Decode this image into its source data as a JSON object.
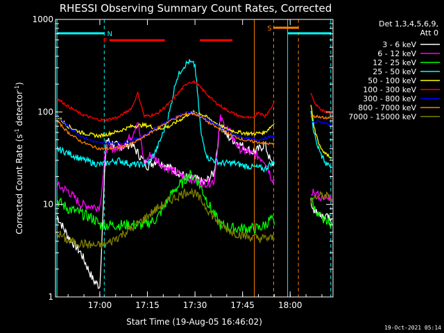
{
  "chart_data": {
    "type": "line",
    "title": "RHESSI Observing Summary Count Rates, Corrected",
    "xlabel": "Start Time (19-Aug-05 16:46:02)",
    "ylabel": "Corrected Count Rate (s⁻¹ detector⁻¹)",
    "ylabel_parts": {
      "main": "Corrected Count Rate (s",
      "sup1": "-1",
      "mid": " detector",
      "sup2": "-1",
      "end": ")"
    },
    "xlim": [
      46.03,
      133.5
    ],
    "ylim": [
      1,
      1000
    ],
    "yscale": "log",
    "x_tick_values": [
      60,
      75,
      90,
      105,
      120,
      135
    ],
    "x_tick_labels": [
      "17:00",
      "17:15",
      "17:30",
      "17:45",
      "18:00",
      "18:15"
    ],
    "y_tick_values": [
      1,
      10,
      100,
      1000
    ],
    "y_tick_labels": [
      "1",
      "10",
      "100",
      "1000"
    ],
    "legend_header": [
      "Det 1,3,4,5,6,9,",
      "Att 0"
    ],
    "legend_position": "right",
    "series": [
      {
        "name": "3 - 6 keV",
        "color": "#ffffff",
        "x": [
          46.5,
          50,
          54,
          58,
          60,
          62,
          66,
          70,
          73,
          75,
          78,
          82,
          86,
          88,
          90,
          93,
          96,
          98,
          100,
          104,
          108,
          110,
          112,
          114,
          115
        ],
        "y": [
          7.5,
          4.5,
          3.0,
          1.5,
          1.3,
          50,
          42,
          45,
          32,
          26,
          30,
          25,
          21,
          19,
          19,
          17,
          22,
          75,
          55,
          45,
          37,
          39,
          45,
          28,
          27
        ]
      },
      {
        "name": "6 - 12 keV",
        "color": "#ff00ff",
        "x": [
          46.5,
          50,
          54,
          58,
          60,
          62,
          66,
          70,
          72,
          74,
          76,
          80,
          84,
          88,
          91,
          94,
          96,
          98,
          101,
          104,
          108,
          110,
          112,
          113,
          114,
          115
        ],
        "y": [
          16,
          14,
          10,
          9.5,
          9.5,
          41,
          40,
          55,
          80,
          27,
          35,
          26,
          22,
          19,
          18,
          17,
          18,
          85,
          60,
          40,
          35,
          33,
          30,
          25,
          20,
          18
        ]
      },
      {
        "name": "12 - 25 keV",
        "color": "#00ff00",
        "x": [
          46.5,
          50,
          54,
          58,
          60,
          62,
          66,
          70,
          74,
          78,
          82,
          84,
          86,
          88,
          90,
          92,
          95,
          98,
          102,
          106,
          110,
          112,
          114,
          115
        ],
        "y": [
          11,
          9,
          8,
          7,
          6,
          6,
          6,
          6,
          6,
          7,
          12,
          15,
          17,
          21,
          20,
          15,
          9,
          6,
          5.5,
          5.5,
          5.5,
          6,
          7,
          6
        ]
      },
      {
        "name": "25 - 50 keV",
        "color": "#00ffff",
        "x": [
          46.5,
          50,
          54,
          58,
          60,
          62,
          66,
          70,
          74,
          76,
          78,
          80,
          82,
          84,
          86,
          88,
          90,
          92,
          94,
          96,
          98,
          102,
          106,
          110,
          112,
          114,
          115
        ],
        "y": [
          40,
          36,
          31,
          28,
          27,
          28,
          30,
          27,
          27,
          30,
          40,
          60,
          100,
          220,
          300,
          350,
          320,
          55,
          32,
          30,
          28,
          28,
          26,
          25,
          24,
          28,
          28
        ]
      },
      {
        "name": "50 - 100 keV",
        "color": "#ffff00",
        "x": [
          46.5,
          50,
          54,
          58,
          60,
          62,
          66,
          70,
          74,
          76,
          78,
          82,
          86,
          88,
          90,
          92,
          96,
          100,
          104,
          108,
          112,
          114,
          115
        ],
        "y": [
          90,
          70,
          60,
          56,
          55,
          57,
          62,
          70,
          72,
          70,
          65,
          70,
          85,
          95,
          100,
          95,
          78,
          65,
          60,
          58,
          60,
          70,
          75
        ]
      },
      {
        "name": "100 - 300 keV",
        "color": "#ff0000",
        "x": [
          46.5,
          50,
          54,
          58,
          60,
          62,
          66,
          70,
          72,
          74,
          76,
          78,
          82,
          86,
          88,
          90,
          92,
          96,
          100,
          104,
          108,
          110,
          112,
          114,
          115
        ],
        "y": [
          140,
          115,
          95,
          85,
          82,
          82,
          88,
          110,
          160,
          90,
          92,
          95,
          125,
          180,
          210,
          210,
          180,
          130,
          105,
          90,
          85,
          100,
          90,
          110,
          130
        ]
      },
      {
        "name": "300 - 800 keV",
        "color": "#0000ff",
        "x": [
          46.5,
          50,
          54,
          58,
          60,
          62,
          66,
          70,
          74,
          78,
          82,
          86,
          88,
          90,
          92,
          94,
          98,
          102,
          106,
          110,
          112,
          114,
          115
        ],
        "y": [
          90,
          70,
          55,
          48,
          46,
          46,
          46,
          48,
          56,
          68,
          82,
          95,
          100,
          98,
          90,
          82,
          68,
          58,
          52,
          50,
          52,
          54,
          55
        ]
      },
      {
        "name": "800 - 7000 keV",
        "color": "#ff8000",
        "x": [
          46.5,
          50,
          54,
          58,
          60,
          62,
          66,
          70,
          74,
          78,
          82,
          86,
          88,
          90,
          92,
          94,
          98,
          102,
          106,
          110,
          112,
          114,
          115
        ],
        "y": [
          80,
          60,
          48,
          42,
          40,
          40,
          41,
          45,
          54,
          66,
          80,
          92,
          96,
          95,
          88,
          78,
          64,
          55,
          49,
          47,
          46,
          45,
          45
        ]
      },
      {
        "name": "7000 - 15000 keV",
        "color": "#808000",
        "x": [
          46.5,
          50,
          54,
          58,
          60,
          62,
          66,
          70,
          74,
          78,
          82,
          86,
          88,
          90,
          92,
          95,
          98,
          102,
          106,
          110,
          112,
          114,
          115
        ],
        "y": [
          5,
          4,
          3.8,
          3.6,
          3.6,
          3.7,
          4.5,
          5.5,
          7,
          9,
          11,
          13,
          14,
          13,
          11,
          8,
          6,
          5,
          4.5,
          4.3,
          4.3,
          4.3,
          4.3
        ]
      }
    ],
    "series_after_gap": [
      {
        "name": "3 - 6 keV",
        "x": [
          126.5,
          128,
          130,
          132,
          133.2
        ],
        "y": [
          11,
          8,
          7.5,
          7.5,
          7
        ]
      },
      {
        "name": "6 - 12 keV",
        "x": [
          126.5,
          128,
          130,
          132,
          133.2
        ],
        "y": [
          14,
          13,
          12,
          12,
          11
        ]
      },
      {
        "name": "12 - 25 keV",
        "x": [
          126.5,
          128,
          130,
          132,
          133.2
        ],
        "y": [
          12,
          9,
          7,
          6.5,
          6
        ]
      },
      {
        "name": "25 - 50 keV",
        "x": [
          126.5,
          127.5,
          129,
          131,
          133.2
        ],
        "y": [
          100,
          60,
          40,
          28,
          25
        ]
      },
      {
        "name": "50 - 100 keV",
        "x": [
          126.5,
          127.5,
          129,
          131,
          133.2
        ],
        "y": [
          120,
          70,
          45,
          35,
          32
        ]
      },
      {
        "name": "100 - 300 keV",
        "x": [
          126.5,
          127.5,
          129,
          131,
          133.2
        ],
        "y": [
          160,
          130,
          110,
          100,
          95
        ]
      },
      {
        "name": "300 - 800 keV",
        "x": [
          126.5,
          128,
          130,
          132,
          133.2
        ],
        "y": [
          75,
          78,
          76,
          74,
          72
        ]
      },
      {
        "name": "800 - 7000 keV",
        "x": [
          126.5,
          128,
          130,
          132,
          133.2
        ],
        "y": [
          88,
          90,
          88,
          86,
          85
        ]
      },
      {
        "name": "7000 - 15000 keV",
        "x": [
          126.5,
          128,
          130,
          132,
          133.2
        ],
        "y": [
          11,
          12,
          12.5,
          12,
          11.5
        ]
      }
    ],
    "vertical_lines": [
      {
        "x": 46.5,
        "color": "#00ffff",
        "style": "solid"
      },
      {
        "x": 61.4,
        "color": "#00ffff",
        "style": "dashed"
      },
      {
        "x": 108.7,
        "color": "#ff8000",
        "style": "solid"
      },
      {
        "x": 114.8,
        "color": "#ff8000",
        "style": "dashed"
      },
      {
        "x": 119.2,
        "color": "#00ffff",
        "style": "solid"
      },
      {
        "x": 122.6,
        "color": "#ff8000",
        "style": "dashed"
      },
      {
        "x": 132.8,
        "color": "#00ffff",
        "style": "dashed"
      }
    ],
    "flags": [
      {
        "label": "",
        "color": "#00ffff",
        "x1": 46.5,
        "x2": 61.4,
        "level": "n"
      },
      {
        "label": "N",
        "color": "#00ffff",
        "x1": 61.4,
        "x2": 61.4,
        "level": "n"
      },
      {
        "label": "F",
        "color": "#ff0000",
        "x1": 63.0,
        "x2": 80.5,
        "level": "f"
      },
      {
        "label": "",
        "color": "#ff0000",
        "x1": 91.5,
        "x2": 101.8,
        "level": "f"
      },
      {
        "label": "S",
        "color": "#ff8000",
        "x1": 114.8,
        "x2": 122.6,
        "level": "s"
      },
      {
        "label": "",
        "color": "#00ffff",
        "x1": 119.2,
        "x2": 132.8,
        "level": "n"
      }
    ]
  },
  "timestamp": "19-Oct-2021 05:14"
}
